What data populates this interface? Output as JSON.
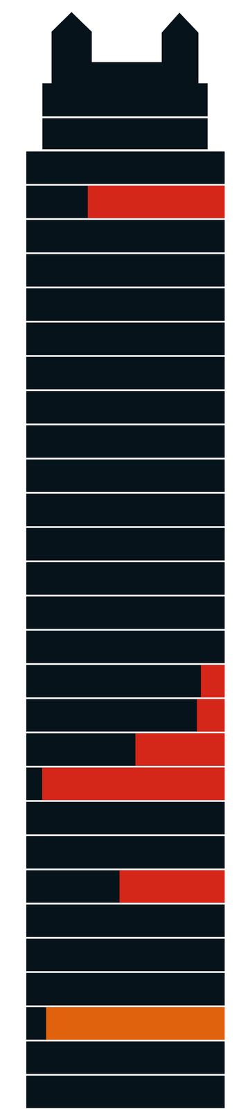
{
  "chart_data": {
    "type": "bar",
    "orientation": "horizontal",
    "categories": [
      null,
      null,
      null,
      null,
      null,
      null,
      null,
      null,
      null,
      null,
      null,
      null,
      null,
      null,
      null,
      null,
      null,
      null,
      null,
      null,
      null,
      null,
      null,
      null,
      null,
      null,
      null,
      null
    ],
    "values": [
      0,
      69,
      0,
      0,
      0,
      0,
      0,
      0,
      0,
      0,
      0,
      0,
      0,
      0,
      0,
      12,
      14,
      45,
      92,
      0,
      0,
      53,
      0,
      0,
      0,
      90,
      0,
      0
    ],
    "colors": [
      "#d42619",
      "#d42619",
      "#d42619",
      "#d42619",
      "#d42619",
      "#d42619",
      "#d42619",
      "#d42619",
      "#d42619",
      "#d42619",
      "#d42619",
      "#d42619",
      "#d42619",
      "#d42619",
      "#d42619",
      "#d42619",
      "#d42619",
      "#d42619",
      "#d42619",
      "#d42619",
      "#d42619",
      "#d42619",
      "#d42619",
      "#d42619",
      "#d42619",
      "#e0620c",
      "#d42619",
      "#d42619"
    ],
    "xlim": [
      0,
      100
    ],
    "xticks": [
      0,
      100
    ],
    "grid": false,
    "tick_labels": false
  }
}
